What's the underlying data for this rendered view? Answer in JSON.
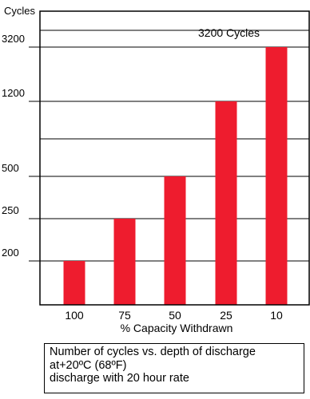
{
  "chart_data": {
    "type": "bar",
    "ylabel": "Cycles",
    "xlabel": "% Capacity Withdrawn",
    "categories": [
      "100",
      "75",
      "50",
      "25",
      "10"
    ],
    "values": [
      200,
      250,
      500,
      1200,
      3200
    ],
    "y_tick_labels": [
      "200",
      "250",
      "500",
      "1200",
      "3200"
    ],
    "y_scale": "non-linear (levels 200, 250, 500, 1200, 3200)",
    "annotation": "3200 Cycles",
    "bar_color": "#ee1c2e",
    "grid": true
  },
  "caption": {
    "line1": "Number of cycles vs. depth of discharge",
    "line2": "at+20ºC (68ºF)",
    "line3": "discharge with 20 hour rate"
  }
}
